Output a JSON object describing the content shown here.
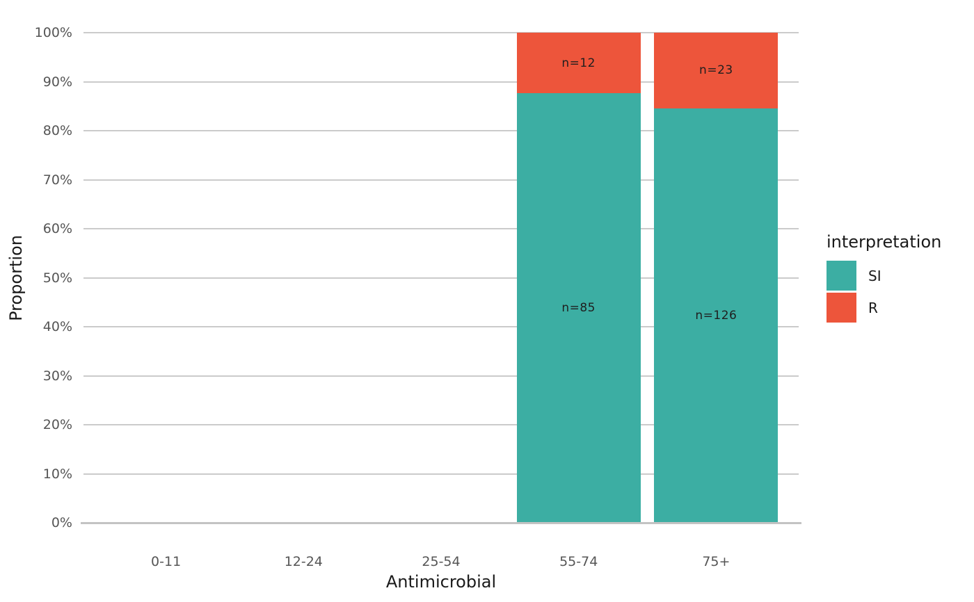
{
  "chart_data": {
    "type": "bar",
    "stacked": true,
    "proportional": true,
    "xlabel": "Antimicrobial",
    "ylabel": "Proportion",
    "categories": [
      "0-11",
      "12-24",
      "25-54",
      "55-74",
      "75+"
    ],
    "series": [
      {
        "name": "SI",
        "color": "#3CAEA3",
        "values": [
          null,
          null,
          null,
          85,
          126
        ],
        "labels": [
          null,
          null,
          null,
          "n=85",
          "n=126"
        ]
      },
      {
        "name": "R",
        "color": "#ED553B",
        "values": [
          null,
          null,
          null,
          12,
          23
        ],
        "labels": [
          null,
          null,
          null,
          "n=12",
          "n=23"
        ]
      }
    ],
    "y_ticks": [
      "0%",
      "10%",
      "20%",
      "30%",
      "40%",
      "50%",
      "60%",
      "70%",
      "80%",
      "90%",
      "100%"
    ],
    "ylim": [
      0,
      1
    ],
    "grid": "major-horizontal",
    "legend": {
      "title": "interpretation",
      "position": "right",
      "items": [
        {
          "label": "SI",
          "color": "#3CAEA3"
        },
        {
          "label": "R",
          "color": "#ED553B"
        }
      ]
    },
    "colors": {
      "background": "#ffffff",
      "gridline": "#cbcbcb",
      "axis_line": "#c3c3c3",
      "tick_text": "#555555",
      "title_text": "#1a1a1a",
      "legend_text": "#1a1a1a",
      "bar_label_text": "#1f1f1f"
    }
  }
}
